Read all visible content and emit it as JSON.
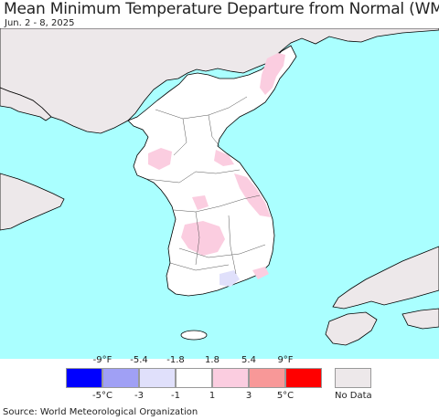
{
  "header": {
    "title": "Mean Minimum Temperature Departure from Normal (WMO)",
    "subtitle": "Jun. 2 - 8, 2025"
  },
  "legend": {
    "f_ticks": [
      "-9°F",
      "-5.4",
      "-1.8",
      "1.8",
      "5.4",
      "9°F"
    ],
    "c_ticks": [
      "-5°C",
      "-3",
      "-1",
      "1",
      "3",
      "5°C"
    ],
    "colors": [
      "#0000ff",
      "#a0a0f5",
      "#e0e0fb",
      "#ffffff",
      "#fbcde0",
      "#f89898",
      "#ff0000"
    ],
    "nodata_color": "#ede8ea",
    "nodata_label": "No Data"
  },
  "map": {
    "ocean_color": "#aaffff",
    "outside_color": "#ede8ea",
    "land_color": "#ffffff"
  },
  "footer": {
    "source": "Source: World Meteorological Organization"
  }
}
